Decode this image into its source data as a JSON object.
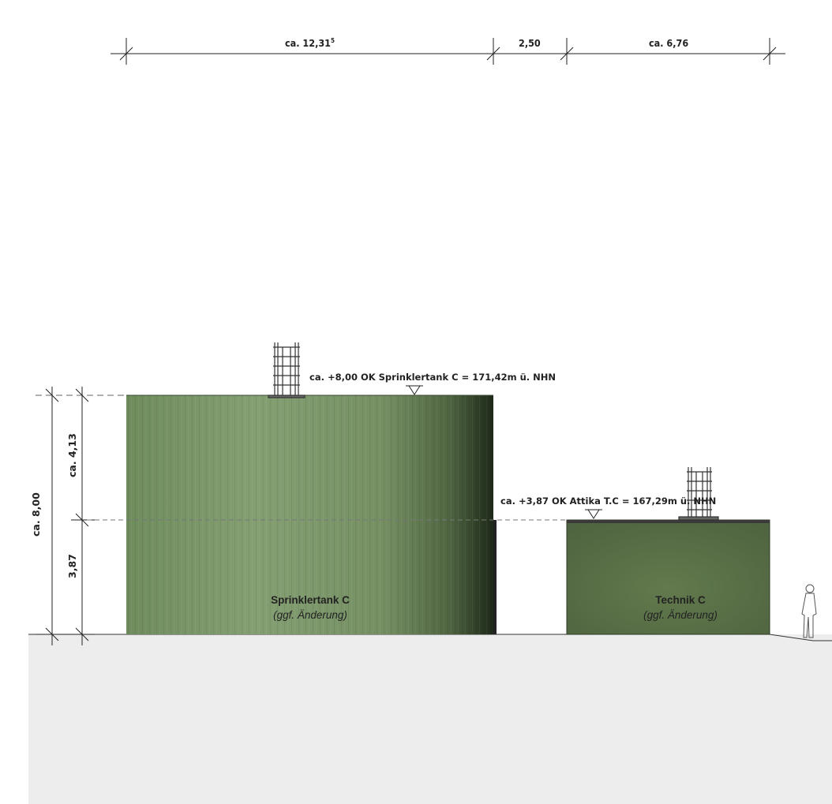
{
  "dimensions_top": {
    "tank_width": "ca. 12,31",
    "tank_width_sup": "5",
    "gap_width": "2,50",
    "technik_width": "ca. 6,76"
  },
  "dimensions_left": {
    "total_height": "ca. 8,00",
    "upper_height": "ca. 4,13",
    "lower_height": "3,87"
  },
  "levels": {
    "tank_top": "ca. +8,00 OK Sprinklertank C = 171,42m ü. NHN",
    "attika": "ca. +3,87 OK Attika T.C = 167,29m ü. NHN"
  },
  "buildings": {
    "tank": {
      "name": "Sprinklertank C",
      "note": "(ggf. Änderung)"
    },
    "technik": {
      "name": "Technik C",
      "note": "(ggf. Änderung)"
    }
  },
  "colors": {
    "tank_green": "#7f9a6c",
    "technik_green": "#5b7046",
    "ground": "#ededed"
  }
}
